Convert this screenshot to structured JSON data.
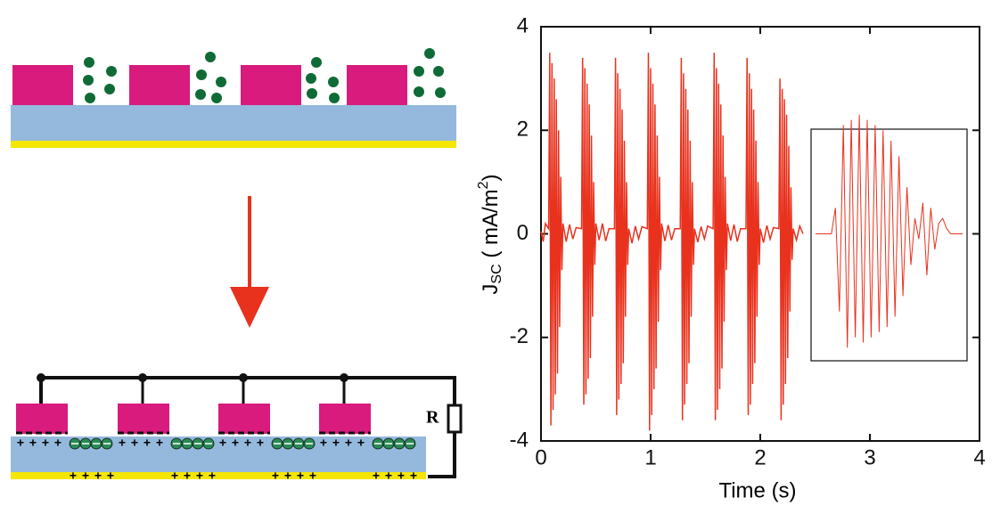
{
  "diagram": {
    "resistor_label": "R",
    "plus": "+"
  },
  "chart_data": {
    "type": "line",
    "x_label": "Time (s)",
    "y_label": {
      "main": "J",
      "sub": "SC",
      "unit": " ( mA/m",
      "sup": "2",
      "close": ")"
    },
    "xlim": [
      0,
      4
    ],
    "ylim": [
      -4,
      4
    ],
    "xticks": [
      0,
      1,
      2,
      3,
      4
    ],
    "yticks": [
      -4,
      -2,
      0,
      2,
      4
    ],
    "color": "#e8321e",
    "x": [
      0.0,
      0.02,
      0.04,
      0.07,
      0.08,
      0.09,
      0.1,
      0.11,
      0.12,
      0.13,
      0.14,
      0.15,
      0.16,
      0.17,
      0.18,
      0.19,
      0.2,
      0.23,
      0.26,
      0.29,
      0.32,
      0.37,
      0.38,
      0.39,
      0.4,
      0.41,
      0.42,
      0.43,
      0.44,
      0.45,
      0.46,
      0.47,
      0.48,
      0.49,
      0.5,
      0.53,
      0.56,
      0.59,
      0.62,
      0.67,
      0.68,
      0.69,
      0.7,
      0.71,
      0.72,
      0.73,
      0.74,
      0.75,
      0.76,
      0.77,
      0.78,
      0.79,
      0.8,
      0.83,
      0.86,
      0.89,
      0.92,
      0.97,
      0.98,
      0.99,
      1.0,
      1.01,
      1.02,
      1.03,
      1.04,
      1.05,
      1.06,
      1.07,
      1.08,
      1.09,
      1.1,
      1.13,
      1.16,
      1.19,
      1.22,
      1.27,
      1.28,
      1.29,
      1.3,
      1.31,
      1.32,
      1.33,
      1.34,
      1.35,
      1.36,
      1.37,
      1.38,
      1.39,
      1.4,
      1.43,
      1.46,
      1.49,
      1.52,
      1.57,
      1.58,
      1.59,
      1.6,
      1.61,
      1.62,
      1.63,
      1.64,
      1.65,
      1.66,
      1.67,
      1.68,
      1.69,
      1.7,
      1.73,
      1.76,
      1.79,
      1.82,
      1.87,
      1.88,
      1.89,
      1.9,
      1.91,
      1.92,
      1.93,
      1.94,
      1.95,
      1.96,
      1.97,
      1.98,
      1.99,
      2.0,
      2.03,
      2.06,
      2.09,
      2.12,
      2.17,
      2.18,
      2.19,
      2.2,
      2.21,
      2.22,
      2.23,
      2.24,
      2.25,
      2.26,
      2.27,
      2.28,
      2.29,
      2.3,
      2.33,
      2.36,
      2.39
    ],
    "values": [
      0.05,
      -0.15,
      0.2,
      0.1,
      3.5,
      -3.7,
      3.3,
      -3.4,
      3.0,
      -3.1,
      2.6,
      -2.7,
      2.0,
      -1.8,
      1.1,
      -0.7,
      0.2,
      -0.15,
      0.18,
      -0.1,
      0.12,
      0.1,
      3.4,
      -3.3,
      3.2,
      -3.1,
      2.9,
      -2.8,
      2.5,
      -2.4,
      1.9,
      -1.6,
      1.0,
      -0.6,
      0.2,
      -0.12,
      0.2,
      -0.14,
      0.1,
      0.1,
      3.4,
      -3.5,
      3.1,
      -3.2,
      2.8,
      -2.9,
      2.4,
      -2.5,
      1.8,
      -1.6,
      1.0,
      -0.6,
      0.1,
      -0.18,
      0.15,
      -0.1,
      0.14,
      0.1,
      3.5,
      -3.8,
      3.2,
      -3.5,
      2.9,
      -3.0,
      2.5,
      -2.6,
      1.9,
      -1.7,
      1.1,
      -0.7,
      0.2,
      -0.14,
      0.17,
      -0.12,
      0.1,
      0.1,
      3.4,
      -3.6,
      3.1,
      -3.3,
      2.8,
      -2.9,
      2.4,
      -2.5,
      1.8,
      -1.6,
      1.0,
      -0.6,
      0.1,
      -0.16,
      0.14,
      -0.1,
      0.15,
      0.1,
      3.5,
      -3.6,
      3.2,
      -3.4,
      2.9,
      -3.0,
      2.5,
      -2.6,
      1.9,
      -1.7,
      1.1,
      -0.7,
      0.2,
      -0.13,
      0.18,
      -0.15,
      0.1,
      0.1,
      3.4,
      -3.5,
      3.1,
      -3.3,
      2.8,
      -2.9,
      2.4,
      -2.5,
      1.8,
      -1.6,
      1.0,
      -0.6,
      0.1,
      -0.17,
      0.16,
      -0.1,
      0.12,
      0.1,
      3.0,
      -3.6,
      2.8,
      -3.3,
      2.6,
      -2.9,
      2.3,
      -2.4,
      1.7,
      -1.5,
      0.9,
      -0.5,
      0.1,
      -0.12,
      0.15,
      0.0
    ],
    "inset": {
      "values": [
        0,
        0,
        0,
        0,
        0,
        0.5,
        -1.5,
        2.1,
        -2.2,
        2.2,
        -2.0,
        2.3,
        -2.1,
        2.2,
        -2.0,
        2.1,
        -1.9,
        2.0,
        -1.8,
        1.8,
        -1.6,
        1.5,
        -1.2,
        0.9,
        -0.6,
        0.3,
        -0.1,
        0.6,
        -0.8,
        0.5,
        -0.3,
        0.2,
        0.3,
        0.1,
        0,
        0,
        0,
        0
      ]
    }
  }
}
